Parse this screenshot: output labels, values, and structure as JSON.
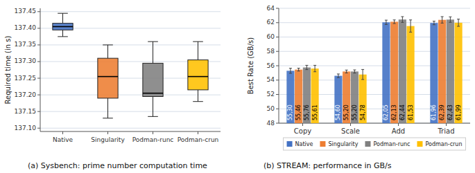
{
  "chart_data": [
    {
      "type": "box",
      "title": "(a) Sysbench: prime number computation time",
      "categories": [
        "Native",
        "Singularity",
        "Podman-runc",
        "Podman-crun"
      ],
      "colors": [
        "#4472c4",
        "#ed7d31",
        "#808080",
        "#ffc000"
      ],
      "values": [
        {
          "whislo": 137.375,
          "q1": 137.395,
          "med": 137.405,
          "q3": 137.415,
          "whishi": 137.445
        },
        {
          "whislo": 137.13,
          "q1": 137.19,
          "med": 137.255,
          "q3": 137.31,
          "whishi": 137.35
        },
        {
          "whislo": 137.135,
          "q1": 137.195,
          "med": 137.205,
          "q3": 137.295,
          "whishi": 137.36
        },
        {
          "whislo": 137.18,
          "q1": 137.215,
          "med": 137.255,
          "q3": 137.305,
          "whishi": 137.36
        }
      ],
      "ylabel": "Required time (in s)",
      "ylim": [
        137.09,
        137.46
      ],
      "yticks": [
        {
          "value": 137.1,
          "label": "137.10"
        },
        137.15,
        {
          "value": 137.2,
          "label": "137.20"
        },
        137.25,
        {
          "value": 137.3,
          "label": "137.30"
        },
        137.35,
        {
          "value": 137.4,
          "label": "137.40"
        },
        137.45
      ],
      "grid": true
    },
    {
      "type": "bar",
      "title": "(b) STREAM: performance in GB/s",
      "categories": [
        "Copy",
        "Scale",
        "Add",
        "Triad"
      ],
      "series": [
        {
          "name": "Native",
          "color": "#4472c4",
          "values": [
            55.3,
            54.6,
            62.05,
            61.96
          ],
          "value_labels": [
            "55,30",
            "54,60",
            "62,05",
            "61,96"
          ],
          "errors": [
            0.35,
            0.25,
            0.3,
            0.25
          ]
        },
        {
          "name": "Singularity",
          "color": "#ed7d31",
          "values": [
            55.46,
            55.2,
            62.13,
            62.39
          ],
          "value_labels": [
            "55,46",
            "55,20",
            "62,13",
            "62,39"
          ],
          "errors": [
            0.2,
            0.2,
            0.25,
            0.45
          ]
        },
        {
          "name": "Podman-runc",
          "color": "#808080",
          "values": [
            55.76,
            55.2,
            62.44,
            62.43
          ],
          "value_labels": [
            "55,76",
            "55,20",
            "62,44",
            "62,43"
          ],
          "errors": [
            0.3,
            0.22,
            0.4,
            0.38
          ]
        },
        {
          "name": "Podman-crun",
          "color": "#ffc000",
          "values": [
            55.61,
            54.78,
            61.53,
            61.99
          ],
          "value_labels": [
            "55,61",
            "54,78",
            "61,53",
            "61,99"
          ],
          "errors": [
            0.45,
            0.7,
            0.85,
            0.5
          ]
        }
      ],
      "ylabel": "Best Rate (GB/s)",
      "ylim": [
        48,
        64
      ],
      "yticks": [
        48,
        50,
        52,
        54,
        56,
        58,
        60,
        62,
        64
      ],
      "grid": true,
      "legend": "bottom",
      "data_labels": true
    }
  ]
}
